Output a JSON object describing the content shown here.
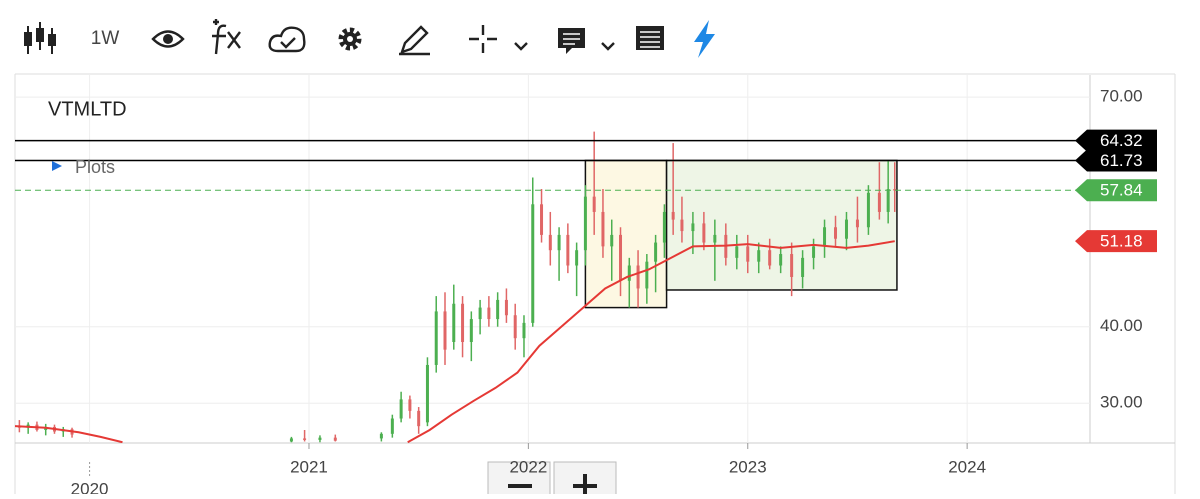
{
  "toolbar": {
    "interval": "1W"
  },
  "chart_data": {
    "type": "candlestick",
    "title": "VTMLTD",
    "plots_label": "Plots",
    "xlim": [
      2019.66,
      2024.56
    ],
    "ylim": [
      24.8,
      72.9
    ],
    "xticks": [
      2020,
      2021,
      2022,
      2023,
      2024
    ],
    "yticks": [
      {
        "value": 30,
        "label": "30.00"
      },
      {
        "value": 40,
        "label": "40.00"
      },
      {
        "value": 70,
        "label": "70.00"
      }
    ],
    "grid": true,
    "up_color": "#4caf50",
    "down_color": "#e06666",
    "candles": {
      "x": [
        2019.68,
        2019.72,
        2019.76,
        2019.8,
        2019.84,
        2019.88,
        2019.92,
        2020.92,
        2020.98,
        2021.05,
        2021.12,
        2021.33,
        2021.38,
        2021.42,
        2021.46,
        2021.5,
        2021.54,
        2021.58,
        2021.62,
        2021.66,
        2021.7,
        2021.74,
        2021.78,
        2021.82,
        2021.86,
        2021.9,
        2021.94,
        2021.98,
        2022.02,
        2022.06,
        2022.1,
        2022.14,
        2022.18,
        2022.22,
        2022.26,
        2022.3,
        2022.34,
        2022.38,
        2022.42,
        2022.46,
        2022.5,
        2022.54,
        2022.58,
        2022.62,
        2022.66,
        2022.7,
        2022.75,
        2022.8,
        2022.85,
        2022.9,
        2022.95,
        2023.0,
        2023.05,
        2023.1,
        2023.15,
        2023.2,
        2023.25,
        2023.3,
        2023.35,
        2023.4,
        2023.45,
        2023.5,
        2023.55,
        2023.6,
        2023.64,
        2023.67
      ],
      "open": [
        27.0,
        26.8,
        27.2,
        26.5,
        26.9,
        26.3,
        26.6,
        25.0,
        25.4,
        25.2,
        25.5,
        25.4,
        26.0,
        28.0,
        30.5,
        29.0,
        27.5,
        35.0,
        42.0,
        38.0,
        43.0,
        38.0,
        41.0,
        42.5,
        41.0,
        43.5,
        41.5,
        38.5,
        40.5,
        56.0,
        52.0,
        50.0,
        52.0,
        48.0,
        50.0,
        57.0,
        55.0,
        50.5,
        52.0,
        46.0,
        48.0,
        45.0,
        48.5,
        51.0,
        55.0,
        54.0,
        52.5,
        53.5,
        51.0,
        52.0,
        49.0,
        50.5,
        48.5,
        50.0,
        48.0,
        49.5,
        46.5,
        49.0,
        50.5,
        53.0,
        51.5,
        54.0,
        53.0,
        57.5,
        55.0,
        58.0
      ],
      "high": [
        27.8,
        27.5,
        27.6,
        27.3,
        27.2,
        26.9,
        26.8,
        25.6,
        26.5,
        25.8,
        25.9,
        26.2,
        28.5,
        31.5,
        31.0,
        29.5,
        36.0,
        44.0,
        44.5,
        45.5,
        44.0,
        42.0,
        43.5,
        44.0,
        44.5,
        45.0,
        43.0,
        41.5,
        59.5,
        58.0,
        55.0,
        53.0,
        53.5,
        51.0,
        58.5,
        65.5,
        58.0,
        54.0,
        53.0,
        49.0,
        50.0,
        49.5,
        52.0,
        56.0,
        64.0,
        57.0,
        55.0,
        55.0,
        54.0,
        53.5,
        52.0,
        52.0,
        51.0,
        51.5,
        50.5,
        51.0,
        50.0,
        51.5,
        54.0,
        54.5,
        55.0,
        57.0,
        58.5,
        61.5,
        61.7,
        61.5
      ],
      "low": [
        26.2,
        26.0,
        26.3,
        25.8,
        26.0,
        25.6,
        25.5,
        24.9,
        25.0,
        24.9,
        25.0,
        25.0,
        25.5,
        27.5,
        28.0,
        26.0,
        27.0,
        34.0,
        35.0,
        37.0,
        36.0,
        35.5,
        39.0,
        40.0,
        40.0,
        40.5,
        37.0,
        36.0,
        40.0,
        51.0,
        48.0,
        46.0,
        47.0,
        44.0,
        48.0,
        52.0,
        49.0,
        46.0,
        44.0,
        42.5,
        42.5,
        43.0,
        44.5,
        49.0,
        52.0,
        51.0,
        49.5,
        50.0,
        46.0,
        48.0,
        47.5,
        47.0,
        47.0,
        47.5,
        47.0,
        44.0,
        45.0,
        47.5,
        49.0,
        50.5,
        50.0,
        51.0,
        52.0,
        54.0,
        53.5,
        55.0
      ],
      "close": [
        26.8,
        27.2,
        26.5,
        26.9,
        26.3,
        26.6,
        25.9,
        25.4,
        25.2,
        25.5,
        25.1,
        26.0,
        28.0,
        30.5,
        29.0,
        27.0,
        35.0,
        42.0,
        37.0,
        43.0,
        38.0,
        41.0,
        42.5,
        41.0,
        43.5,
        41.5,
        38.5,
        40.5,
        56.0,
        52.0,
        50.0,
        52.0,
        48.0,
        50.0,
        57.0,
        55.0,
        50.5,
        52.0,
        46.0,
        48.0,
        45.0,
        48.5,
        51.0,
        55.0,
        54.0,
        52.5,
        53.5,
        51.0,
        52.0,
        49.0,
        50.5,
        48.5,
        50.0,
        48.0,
        49.5,
        46.5,
        49.0,
        50.5,
        53.0,
        51.5,
        54.0,
        53.0,
        57.5,
        55.0,
        58.0,
        57.8
      ]
    },
    "moving_average": {
      "color": "#e53935",
      "x": [
        2019.66,
        2019.8,
        2019.95,
        2020.05,
        2020.15,
        null,
        2021.45,
        2021.55,
        2021.65,
        2021.75,
        2021.85,
        2021.95,
        2022.05,
        2022.15,
        2022.25,
        2022.35,
        2022.45,
        2022.55,
        2022.65,
        2022.75,
        2022.9,
        2023.0,
        2023.15,
        2023.3,
        2023.45,
        2023.55,
        2023.67
      ],
      "y": [
        27.0,
        26.8,
        26.2,
        25.6,
        24.9,
        null,
        24.9,
        26.5,
        28.5,
        30.3,
        32.0,
        34.0,
        37.5,
        40.0,
        42.5,
        45.0,
        46.5,
        47.5,
        49.0,
        50.5,
        50.6,
        50.8,
        50.3,
        50.7,
        50.3,
        50.6,
        51.18
      ]
    },
    "boxes": [
      {
        "x": [
          2022.26,
          2022.63
        ],
        "y": [
          42.5,
          61.73
        ],
        "fill": "#fdf8e3"
      },
      {
        "x": [
          2022.63,
          2023.68
        ],
        "y": [
          44.8,
          61.73
        ],
        "fill": "#eef5e6"
      }
    ],
    "price_lines": [
      {
        "value": 64.32,
        "color": "#000000",
        "line": "solid"
      },
      {
        "value": 61.73,
        "color": "#000000",
        "line": "solid"
      },
      {
        "value": 57.84,
        "color": "#4caf50",
        "line": "dashed"
      },
      {
        "value": 51.18,
        "color": "#e53935",
        "line": "none"
      }
    ]
  }
}
